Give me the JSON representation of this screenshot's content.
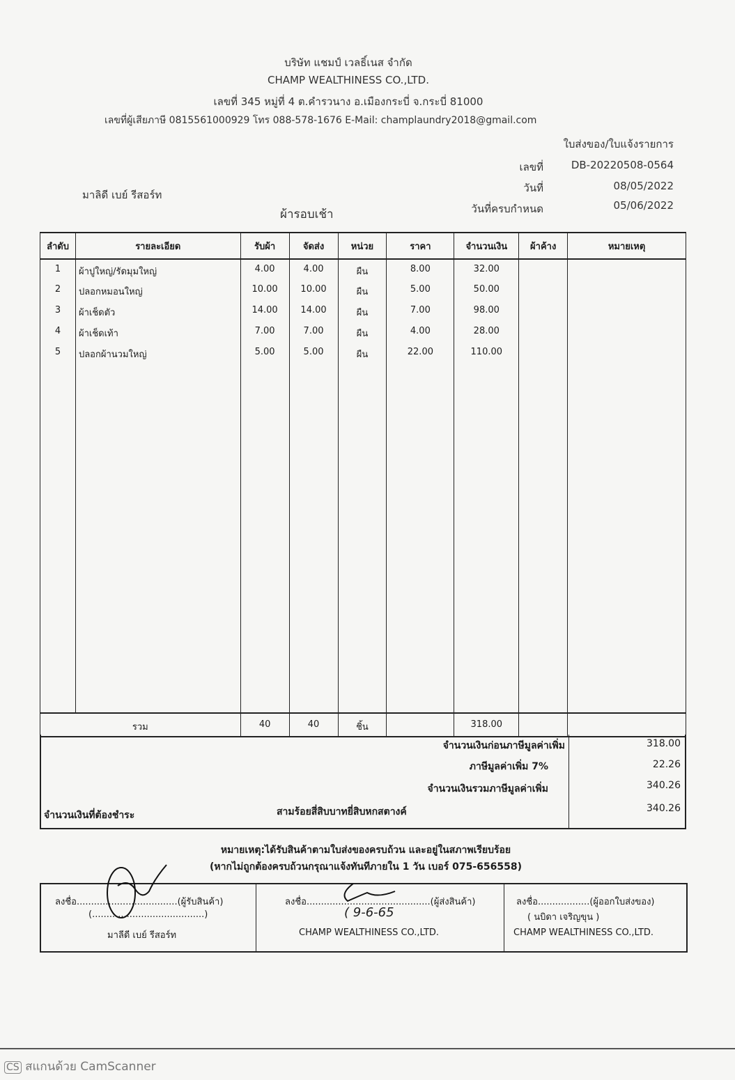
{
  "company": {
    "name_th": "บริษัท แชมป์ เวลธิ์เนส จำกัด",
    "name_en": "CHAMP WEALTHINESS CO.,LTD.",
    "address": "เลขที่ 345 หมู่ที่ 4 ต.คำรวนาง อ.เมืองกระบี่ จ.กระบี่ 81000",
    "contact": "เลขที่ผู้เสียภาษี 0815561000929 โทร 088-578-1676 E-Mail: champlaundry2018@gmail.com"
  },
  "doc": {
    "title": "ใบส่งของ/ใบแจ้งรายการ",
    "no_label": "เลขที่",
    "no": "DB-20220508-0564",
    "date_label": "วันที่",
    "date": "08/05/2022",
    "due_label": "วันที่ครบกำหนด",
    "due": "05/06/2022"
  },
  "customer": "มาลิดี เบย์ รีสอร์ท",
  "round": "ผ้ารอบเช้า",
  "table": {
    "headers": [
      "ลำดับ",
      "รายละเอียด",
      "รับผ้า",
      "จัดส่ง",
      "หน่วย",
      "ราคา",
      "จำนวนเงิน",
      "ผ้าค้าง",
      "หมายเหตุ"
    ],
    "rows": [
      [
        "1",
        "ผ้าปูใหญ่/รัดมุมใหญ่",
        "4.00",
        "4.00",
        "ผืน",
        "8.00",
        "32.00",
        "",
        ""
      ],
      [
        "2",
        "ปลอกหมอนใหญ่",
        "10.00",
        "10.00",
        "ผืน",
        "5.00",
        "50.00",
        "",
        ""
      ],
      [
        "3",
        "ผ้าเช็ดตัว",
        "14.00",
        "14.00",
        "ผืน",
        "7.00",
        "98.00",
        "",
        ""
      ],
      [
        "4",
        "ผ้าเช็ดเท้า",
        "7.00",
        "7.00",
        "ผืน",
        "4.00",
        "28.00",
        "",
        ""
      ],
      [
        "5",
        "ปลอกผ้านวมใหญ่",
        "5.00",
        "5.00",
        "ผืน",
        "22.00",
        "110.00",
        "",
        ""
      ]
    ],
    "total": {
      "label": "รวม",
      "received": "40",
      "delivered": "40",
      "unit": "ชิ้น",
      "amount": "318.00"
    }
  },
  "summary": {
    "pre_vat_label": "จำนวนเงินก่อนภาษีมูลค่าเพิ่ม",
    "pre_vat": "318.00",
    "vat_label": "ภาษีมูลค่าเพิ่ม 7%",
    "vat": "22.26",
    "incl_label": "จำนวนเงินรวมภาษีมูลค่าเพิ่ม",
    "incl": "340.26",
    "pay_label": "จำนวนเงินที่ต้องชำระ",
    "pay_words": "สามร้อยสี่สิบบาทยี่สิบหกสตางค์",
    "pay": "340.26"
  },
  "note": {
    "line1": "หมายเหตุ:ได้รับสินค้าตามใบส่งของครบถ้วน และอยู่ในสภาพเรียบร้อย",
    "line2": "(หากไม่ถูกต้องครบถ้วนกรุณาแจ้งทันทีภายใน 1 วัน   เบอร์ 075-656558)"
  },
  "signatures": [
    {
      "line": "ลงชื่อ...................................(ผู้รับสินค้า)",
      "paren": "(.......................................)",
      "name": "มาลีดี เบย์ รีสอร์ท"
    },
    {
      "line": "ลงชื่อ...........................................(ผู้ส่งสินค้า)",
      "handwritten": "( 9-6-65",
      "name": "CHAMP WEALTHINESS CO.,LTD."
    },
    {
      "line": "ลงชื่อ..................(ผู้ออกใบส่งของ)",
      "paren": "(        นบิดา เจริญขุน        )",
      "name": "CHAMP WEALTHINESS CO.,LTD."
    }
  ],
  "footer": {
    "badge": "CS",
    "text": "สแกนด้วย CamScanner"
  }
}
